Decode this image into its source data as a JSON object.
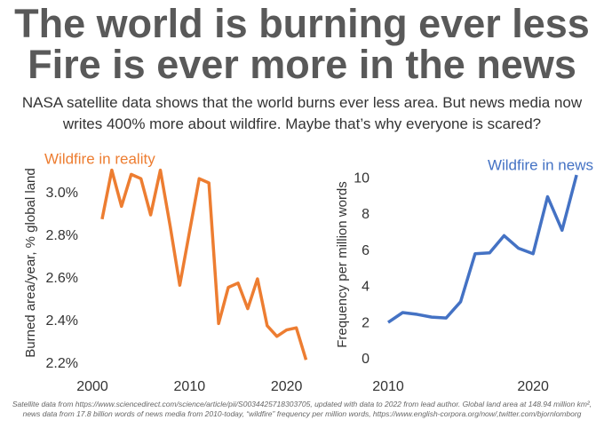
{
  "header": {
    "title": [
      "The world is burning ever less",
      "Fire is ever more in the news"
    ],
    "subtitle": "NASA satellite data shows that the world burns ever less area. But news media now writes 400% more about wildfire. Maybe that’s why everyone is scared?"
  },
  "chart_data": [
    {
      "type": "line",
      "title": "Wildfire in reality",
      "y_label": "Burned area/year, % global land",
      "x": [
        2001,
        2002,
        2003,
        2004,
        2005,
        2006,
        2007,
        2008,
        2009,
        2010,
        2011,
        2012,
        2013,
        2014,
        2015,
        2016,
        2017,
        2018,
        2019,
        2020,
        2021,
        2022
      ],
      "series": [
        {
          "name": "Wildfire in reality",
          "color": "#ED7D31",
          "values": [
            2.88,
            3.11,
            2.94,
            3.09,
            3.07,
            2.9,
            3.11,
            2.85,
            2.57,
            2.82,
            3.07,
            3.05,
            2.39,
            2.56,
            2.58,
            2.46,
            2.6,
            2.38,
            2.33,
            2.36,
            2.37,
            2.22
          ]
        }
      ],
      "xlim": [
        2000,
        2022.5
      ],
      "xticks": [
        2000,
        2010,
        2020
      ],
      "ylim": [
        2.2,
        3.15
      ],
      "yticks": [
        {
          "value": 2.2,
          "label": "2.2%"
        },
        {
          "value": 2.4,
          "label": "2.4%"
        },
        {
          "value": 2.6,
          "label": "2.6%"
        },
        {
          "value": 2.8,
          "label": "2.8%"
        },
        {
          "value": 3.0,
          "label": "3.0%"
        }
      ],
      "grid": false
    },
    {
      "type": "line",
      "title": "Wildfire in news",
      "y_label": "Frequency per million words",
      "x": [
        2010,
        2011,
        2012,
        2013,
        2014,
        2015,
        2016,
        2017,
        2018,
        2019,
        2020,
        2021,
        2022,
        2023
      ],
      "series": [
        {
          "name": "Wildfire in news",
          "color": "#4472C4",
          "values": [
            2.06,
            2.6,
            2.5,
            2.35,
            2.3,
            3.2,
            5.85,
            5.9,
            6.85,
            6.15,
            5.85,
            9.0,
            7.15,
            10.2
          ]
        }
      ],
      "xlim": [
        2010,
        2023.3
      ],
      "xticks": [
        2010,
        2020
      ],
      "ylim": [
        0,
        10.5
      ],
      "yticks": [
        0,
        2,
        4,
        6,
        8,
        10
      ],
      "grid": false
    }
  ],
  "source": "Satellite data from https://www.sciencedirect.com/science/article/pii/S0034425718303705, updated with data to 2022 from lead author. Global land area at 148.94 million km², news data from 17.8 billion words of news media from 2010-today, “wildfire” frequency per million words, https://www.english-corpora.org/now/,twitter.com/bjornlomborg"
}
